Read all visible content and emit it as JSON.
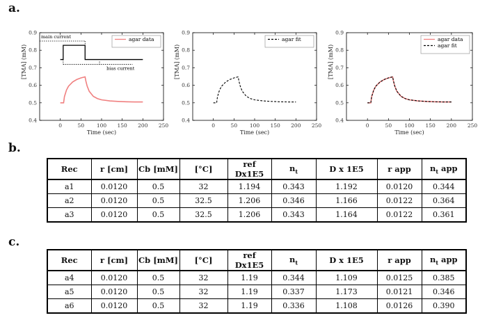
{
  "panels": {
    "a": "a.",
    "b": "b.",
    "c": "c."
  },
  "chart_data": [
    {
      "type": "line",
      "name": "agar-data-plot",
      "xlabel": "Time (sec)",
      "ylabel": "[TMA] (mM)",
      "xlim": [
        -50,
        250
      ],
      "ylim": [
        0.4,
        0.9
      ],
      "xticks": [
        0,
        50,
        100,
        150,
        200,
        250
      ],
      "yticks": [
        0.4,
        0.5,
        0.6,
        0.7,
        0.8,
        0.9
      ],
      "series": [
        {
          "name": "agar data",
          "style": "solid",
          "color": "#f08080",
          "x": [
            0,
            8,
            10,
            15,
            20,
            30,
            40,
            50,
            60,
            62,
            65,
            70,
            80,
            90,
            100,
            120,
            140,
            160,
            180,
            200
          ],
          "y": [
            0.5,
            0.5,
            0.535,
            0.573,
            0.595,
            0.619,
            0.633,
            0.642,
            0.648,
            0.624,
            0.596,
            0.566,
            0.537,
            0.524,
            0.517,
            0.511,
            0.508,
            0.506,
            0.505,
            0.505
          ]
        }
      ],
      "protocol": {
        "main_label": "main current",
        "bias_label": "bias current",
        "x": [
          0,
          7,
          7,
          60,
          60,
          200
        ],
        "y": [
          0.747,
          0.747,
          0.828,
          0.828,
          0.747,
          0.747
        ]
      }
    },
    {
      "type": "line",
      "name": "agar-fit-plot",
      "xlabel": "Time (sec)",
      "ylabel": "[TMA] (mM)",
      "xlim": [
        -50,
        250
      ],
      "ylim": [
        0.4,
        0.9
      ],
      "xticks": [
        0,
        50,
        100,
        150,
        200,
        250
      ],
      "yticks": [
        0.4,
        0.5,
        0.6,
        0.7,
        0.8,
        0.9
      ],
      "series": [
        {
          "name": "agar fit",
          "style": "dashed",
          "color": "#000000",
          "x": [
            0,
            8,
            10,
            15,
            20,
            30,
            40,
            50,
            60,
            62,
            65,
            70,
            80,
            90,
            100,
            120,
            140,
            160,
            180,
            200
          ],
          "y": [
            0.5,
            0.5,
            0.535,
            0.573,
            0.595,
            0.619,
            0.633,
            0.642,
            0.648,
            0.624,
            0.596,
            0.566,
            0.537,
            0.524,
            0.517,
            0.511,
            0.508,
            0.506,
            0.505,
            0.505
          ]
        }
      ]
    },
    {
      "type": "line",
      "name": "agar-overlay-plot",
      "xlabel": "Time (sec)",
      "ylabel": "[TMA] (mM)",
      "xlim": [
        -50,
        250
      ],
      "ylim": [
        0.4,
        0.9
      ],
      "xticks": [
        0,
        50,
        100,
        150,
        200,
        250
      ],
      "yticks": [
        0.4,
        0.5,
        0.6,
        0.7,
        0.8,
        0.9
      ],
      "series": [
        {
          "name": "agar data",
          "style": "solid",
          "color": "#f08080",
          "x": [
            0,
            8,
            10,
            15,
            20,
            30,
            40,
            50,
            60,
            62,
            65,
            70,
            80,
            90,
            100,
            120,
            140,
            160,
            180,
            200
          ],
          "y": [
            0.5,
            0.5,
            0.535,
            0.573,
            0.595,
            0.619,
            0.633,
            0.642,
            0.648,
            0.624,
            0.596,
            0.566,
            0.537,
            0.524,
            0.517,
            0.511,
            0.508,
            0.506,
            0.505,
            0.505
          ]
        },
        {
          "name": "agar fit",
          "style": "dashed",
          "color": "#000000",
          "x": [
            0,
            8,
            10,
            15,
            20,
            30,
            40,
            50,
            60,
            62,
            65,
            70,
            80,
            90,
            100,
            120,
            140,
            160,
            180,
            200
          ],
          "y": [
            0.5,
            0.5,
            0.535,
            0.573,
            0.595,
            0.619,
            0.633,
            0.642,
            0.648,
            0.624,
            0.596,
            0.566,
            0.537,
            0.524,
            0.517,
            0.511,
            0.508,
            0.506,
            0.505,
            0.505
          ]
        }
      ]
    }
  ],
  "table_b": {
    "headers": [
      "Rec",
      "r [cm]",
      "Cb [mM]",
      "[°C]",
      "ref Dx1E5",
      "n",
      "D x 1E5",
      "r app",
      "n app"
    ],
    "header_subs": [
      "",
      "",
      "",
      "",
      "",
      "t",
      "",
      "",
      "t"
    ],
    "rows": [
      [
        "a1",
        "0.0120",
        "0.5",
        "32",
        "1.194",
        "0.343",
        "1.192",
        "0.0120",
        "0.344"
      ],
      [
        "a2",
        "0.0120",
        "0.5",
        "32.5",
        "1.206",
        "0.346",
        "1.166",
        "0.0122",
        "0.364"
      ],
      [
        "a3",
        "0.0120",
        "0.5",
        "32.5",
        "1.206",
        "0.343",
        "1.164",
        "0.0122",
        "0.361"
      ]
    ]
  },
  "table_c": {
    "headers": [
      "Rec",
      "r [cm]",
      "Cb [mM]",
      "[°C]",
      "ref Dx1E5",
      "n",
      "D x 1E5",
      "r app",
      "n app"
    ],
    "header_subs": [
      "",
      "",
      "",
      "",
      "",
      "t",
      "",
      "",
      "t"
    ],
    "rows": [
      [
        "a4",
        "0.0120",
        "0.5",
        "32",
        "1.19",
        "0.344",
        "1.109",
        "0.0125",
        "0.385"
      ],
      [
        "a5",
        "0.0120",
        "0.5",
        "32",
        "1.19",
        "0.337",
        "1.173",
        "0.0121",
        "0.346"
      ],
      [
        "a6",
        "0.0120",
        "0.5",
        "32",
        "1.19",
        "0.336",
        "1.108",
        "0.0126",
        "0.390"
      ]
    ]
  }
}
